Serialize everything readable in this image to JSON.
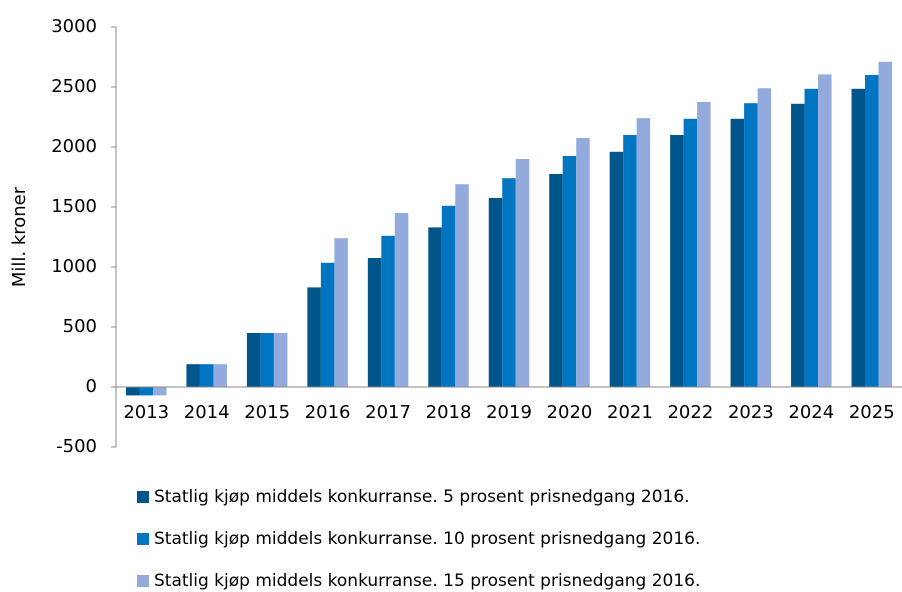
{
  "chart_data": {
    "type": "bar",
    "y_label": "Mill. kroner",
    "categories": [
      "2013",
      "2014",
      "2015",
      "2016",
      "2017",
      "2018",
      "2019",
      "2020",
      "2021",
      "2022",
      "2023",
      "2024",
      "2025"
    ],
    "series": [
      {
        "name": "Statlig kjøp middels konkurranse. 5 prosent prisnedgang 2016.",
        "color": "#00558b",
        "values": [
          -70,
          190,
          450,
          830,
          1075,
          1330,
          1575,
          1775,
          1960,
          2100,
          2235,
          2360,
          2485
        ]
      },
      {
        "name": "Statlig kjøp middels konkurranse. 10 prosent prisnedgang 2016.",
        "color": "#0075c2",
        "values": [
          -70,
          190,
          450,
          1035,
          1260,
          1510,
          1740,
          1925,
          2100,
          2235,
          2365,
          2485,
          2600
        ]
      },
      {
        "name": "Statlig kjøp middels konkurranse. 15 prosent prisnedgang 2016.",
        "color": "#93abdc",
        "values": [
          -70,
          190,
          450,
          1240,
          1450,
          1690,
          1900,
          2075,
          2240,
          2375,
          2490,
          2605,
          2710
        ]
      }
    ],
    "ylim": [
      -500,
      3000
    ],
    "yticks": [
      -500,
      0,
      500,
      1000,
      1500,
      2000,
      2500,
      3000
    ],
    "grid": false
  }
}
